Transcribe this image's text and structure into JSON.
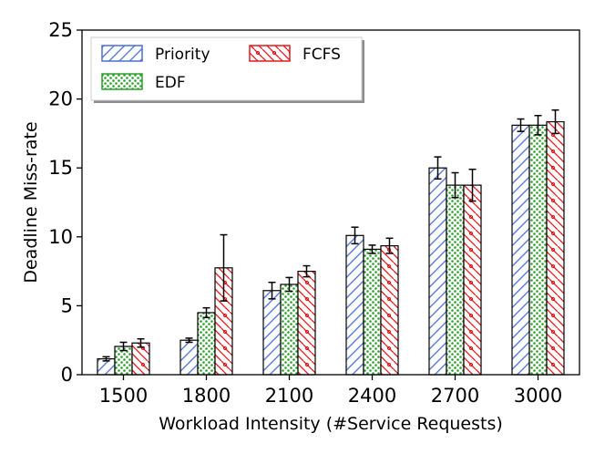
{
  "chart_data": {
    "type": "bar",
    "title": "",
    "xlabel": "Workload Intensity (#Service Requests)",
    "ylabel": "Deadline Miss-rate",
    "ylim": [
      0,
      25
    ],
    "yticks": [
      0,
      5,
      10,
      15,
      20,
      25
    ],
    "categories": [
      "1500",
      "1800",
      "2100",
      "2400",
      "2700",
      "3000"
    ],
    "series": [
      {
        "name": "Priority",
        "color": "#4a6fd4",
        "pattern": "hatch-forward",
        "values": [
          1.15,
          2.5,
          6.1,
          10.1,
          15.0,
          18.1
        ],
        "errors": [
          0.15,
          0.15,
          0.6,
          0.6,
          0.8,
          0.45
        ]
      },
      {
        "name": "EDF",
        "color": "#2ca02c",
        "pattern": "dots",
        "values": [
          2.05,
          4.5,
          6.55,
          9.1,
          13.75,
          18.1
        ],
        "errors": [
          0.3,
          0.35,
          0.5,
          0.3,
          0.9,
          0.7
        ]
      },
      {
        "name": "FCFS",
        "color": "#e31a1c",
        "pattern": "hatch-back-circles",
        "values": [
          2.3,
          7.75,
          7.5,
          9.35,
          13.75,
          18.35
        ],
        "errors": [
          0.3,
          2.4,
          0.4,
          0.55,
          1.15,
          0.85
        ]
      }
    ],
    "legend": {
      "placement": "top-left",
      "columns": 2
    },
    "grid": false
  }
}
